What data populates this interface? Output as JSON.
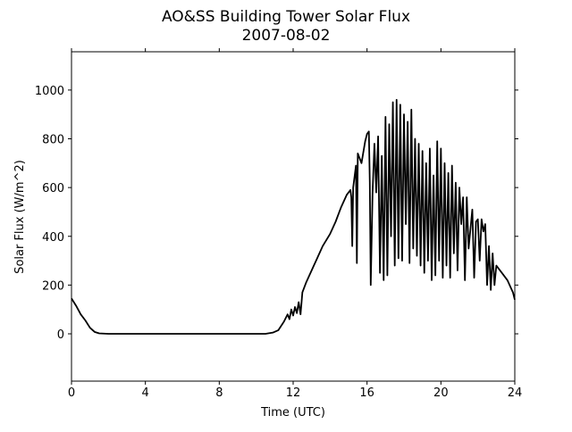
{
  "chart_data": {
    "type": "line",
    "title": "AO&SS Building Tower Solar Flux",
    "subtitle": "2007-08-02",
    "x_label": "Time (UTC)",
    "y_label": "Solar Flux (W/m^2)",
    "xlim": [
      0,
      24
    ],
    "xticks": [
      0,
      4,
      8,
      12,
      16,
      20,
      24
    ],
    "ylim": [
      -194,
      1157
    ],
    "yticks": [
      0,
      200,
      400,
      600,
      800,
      1000
    ],
    "x": [
      0,
      0.25,
      0.5,
      0.75,
      1.0,
      1.25,
      1.5,
      2,
      4,
      6,
      8,
      10,
      10.5,
      10.9,
      11.2,
      11.5,
      11.7,
      11.8,
      11.9,
      12.0,
      12.1,
      12.2,
      12.3,
      12.4,
      12.5,
      12.7,
      13,
      13.3,
      13.6,
      14,
      14.3,
      14.6,
      14.9,
      15.1,
      15.15,
      15.2,
      15.25,
      15.4,
      15.45,
      15.5,
      15.7,
      15.9,
      16.0,
      16.1,
      16.15,
      16.2,
      16.3,
      16.4,
      16.5,
      16.6,
      16.7,
      16.8,
      16.9,
      17.0,
      17.1,
      17.2,
      17.3,
      17.4,
      17.5,
      17.6,
      17.7,
      17.8,
      17.9,
      18.0,
      18.1,
      18.2,
      18.3,
      18.4,
      18.5,
      18.6,
      18.7,
      18.8,
      18.9,
      19.0,
      19.1,
      19.2,
      19.3,
      19.4,
      19.5,
      19.6,
      19.7,
      19.8,
      19.9,
      20.0,
      20.1,
      20.2,
      20.3,
      20.4,
      20.5,
      20.6,
      20.7,
      20.8,
      20.9,
      21.0,
      21.1,
      21.2,
      21.3,
      21.4,
      21.5,
      21.7,
      21.8,
      21.9,
      22.0,
      22.1,
      22.2,
      22.3,
      22.4,
      22.5,
      22.6,
      22.7,
      22.8,
      22.9,
      23.0,
      23.3,
      23.6,
      23.9,
      24.0
    ],
    "series": [
      {
        "name": "Solar Flux",
        "color": "#000000",
        "values": [
          145,
          115,
          80,
          55,
          25,
          8,
          2,
          0,
          0,
          0,
          0,
          0,
          0,
          5,
          15,
          50,
          80,
          60,
          100,
          75,
          110,
          85,
          130,
          80,
          170,
          210,
          260,
          310,
          360,
          410,
          460,
          520,
          570,
          590,
          560,
          360,
          600,
          690,
          290,
          740,
          700,
          790,
          820,
          830,
          620,
          200,
          580,
          780,
          580,
          810,
          250,
          730,
          220,
          890,
          240,
          860,
          400,
          950,
          280,
          960,
          310,
          940,
          300,
          900,
          450,
          870,
          290,
          920,
          350,
          800,
          320,
          780,
          280,
          750,
          250,
          700,
          300,
          760,
          220,
          650,
          240,
          790,
          300,
          760,
          230,
          700,
          280,
          660,
          230,
          690,
          330,
          620,
          260,
          600,
          450,
          560,
          220,
          560,
          350,
          510,
          230,
          460,
          470,
          300,
          470,
          420,
          450,
          200,
          360,
          180,
          330,
          200,
          280,
          250,
          220,
          170,
          140
        ]
      }
    ]
  }
}
